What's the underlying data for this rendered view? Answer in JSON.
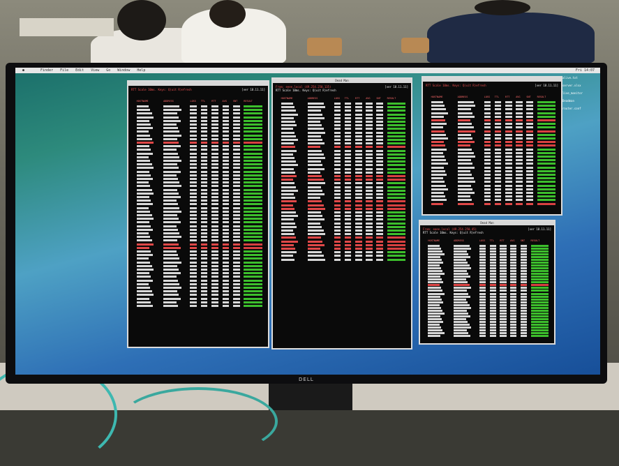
{
  "scene": {
    "brand": "DELL"
  },
  "desktop": {
    "menu_items": [
      "Finder",
      "File",
      "Edit",
      "View",
      "Go",
      "Window",
      "Help"
    ],
    "clock": "Fri 14:07",
    "icons": [
      "alive.txt",
      "server.xlsx",
      "live_monitor",
      "Deadman",
      "router.conf"
    ]
  },
  "terminals": [
    {
      "title": "",
      "header_left": "RTT Scale 10ms. Keys: Q)uit R)efresh",
      "header_right": "",
      "version": "[ver 18.11.11]",
      "columns": [
        "HOSTNAME",
        "ADDRESS",
        "LOSS",
        "TTL",
        "RTT",
        "AVG",
        "SNT",
        "RESULT"
      ],
      "row_states": [
        "n",
        "n",
        "n",
        "n",
        "n",
        "n",
        "n",
        "n",
        "n",
        "n",
        "r",
        "n",
        "n",
        "n",
        "n",
        "n",
        "n",
        "n",
        "n",
        "n",
        "n",
        "n",
        "n",
        "n",
        "n",
        "n",
        "n",
        "n",
        "n",
        "n",
        "n",
        "n",
        "n",
        "n",
        "n",
        "n",
        "n",
        "n",
        "r",
        "r",
        "n",
        "n",
        "n",
        "n",
        "n",
        "n",
        "n",
        "n",
        "n",
        "n",
        "n",
        "n",
        "n",
        "n",
        "n",
        "n"
      ]
    },
    {
      "title": "Dead Man",
      "header_left": "From: eeee.local (49.254.250.135)",
      "header_right": "RTT Scale 10ms. Keys: Q)uit R)efresh",
      "version": "[ver 18.11.11]",
      "columns": [
        "HOSTNAME",
        "ADDRESS",
        "LOSS",
        "TTL",
        "RTT",
        "AVG",
        "SNT",
        "RESULT"
      ],
      "row_states": [
        "n",
        "n",
        "n",
        "n",
        "n",
        "n",
        "n",
        "n",
        "n",
        "n",
        "n",
        "n",
        "r",
        "n",
        "n",
        "n",
        "n",
        "n",
        "n",
        "n",
        "r",
        "r",
        "n",
        "n",
        "n",
        "n",
        "n",
        "r",
        "r",
        "r",
        "n",
        "n",
        "n",
        "n",
        "n",
        "n",
        "n",
        "r",
        "r",
        "r",
        "r",
        "n",
        "n",
        "n"
      ]
    },
    {
      "title": "",
      "header_left": "RTT Scale 10ms. Keys: Q)uit R)efresh",
      "header_right": "",
      "version": "[ver 18.11.11]",
      "columns": [
        "HOSTNAME",
        "ADDRESS",
        "LOSS",
        "TTL",
        "RTT",
        "AVG",
        "SNT",
        "RESULT"
      ],
      "row_states": [
        "n",
        "n",
        "n",
        "n",
        "n",
        "r",
        "n",
        "n",
        "r",
        "n",
        "n",
        "r",
        "r",
        "n",
        "n",
        "n",
        "n",
        "n",
        "n",
        "n",
        "n",
        "n",
        "n",
        "n",
        "n",
        "n",
        "n",
        "n",
        "r"
      ]
    },
    {
      "title": "Dead Man",
      "header_left": "From: eeee.local (49.254.250.45)",
      "header_right": "RTT Scale 10ms. Keys: Q)uit R)efresh",
      "version": "[ver 18.11.11]",
      "columns": [
        "HOSTNAME",
        "ADDRESS",
        "LOSS",
        "TTL",
        "RTT",
        "AVG",
        "SNT",
        "RESULT"
      ],
      "row_states": [
        "n",
        "n",
        "n",
        "n",
        "n",
        "n",
        "n",
        "n",
        "n",
        "n",
        "n",
        "n",
        "n",
        "n",
        "r",
        "n",
        "n",
        "n",
        "n",
        "n",
        "n",
        "n",
        "n",
        "n",
        "n",
        "n",
        "n",
        "n",
        "n",
        "n",
        "n",
        "n",
        "n"
      ]
    }
  ]
}
